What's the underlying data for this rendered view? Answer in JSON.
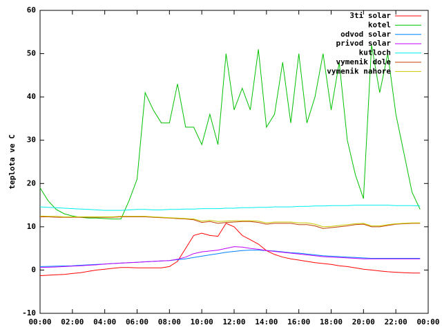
{
  "chart_data": {
    "type": "line",
    "ylabel": "teplota ve C",
    "x": [
      0,
      0.5,
      1,
      1.5,
      2,
      2.5,
      3,
      3.5,
      4,
      4.5,
      5,
      5.5,
      6,
      6.5,
      7,
      7.5,
      8,
      8.5,
      9,
      9.5,
      10,
      10.5,
      11,
      11.5,
      12,
      12.5,
      13,
      13.5,
      14,
      14.5,
      15,
      15.5,
      16,
      16.5,
      17,
      17.5,
      18,
      18.5,
      19,
      19.5,
      20,
      20.5,
      21,
      21.5,
      22,
      22.5,
      23,
      23.5
    ],
    "xlim": [
      0,
      24
    ],
    "xticks": [
      {
        "value": 0,
        "label": "00:00"
      },
      {
        "value": 2,
        "label": "02:00"
      },
      {
        "value": 4,
        "label": "04:00"
      },
      {
        "value": 6,
        "label": "06:00"
      },
      {
        "value": 8,
        "label": "08:00"
      },
      {
        "value": 10,
        "label": "10:00"
      },
      {
        "value": 12,
        "label": "12:00"
      },
      {
        "value": 14,
        "label": "14:00"
      },
      {
        "value": 16,
        "label": "16:00"
      },
      {
        "value": 18,
        "label": "18:00"
      },
      {
        "value": 20,
        "label": "20:00"
      },
      {
        "value": 22,
        "label": "22:00"
      },
      {
        "value": 24,
        "label": "00:00"
      }
    ],
    "ylim": [
      -10,
      60
    ],
    "yticks": [
      -10,
      0,
      10,
      20,
      30,
      40,
      50,
      60
    ],
    "legend": "top-right",
    "series": [
      {
        "name": "3ti solar",
        "color": "#ff0000",
        "values": [
          -1.3,
          -1.2,
          -1.1,
          -1,
          -0.8,
          -0.6,
          -0.3,
          0,
          0.2,
          0.4,
          0.6,
          0.6,
          0.5,
          0.5,
          0.5,
          0.5,
          0.8,
          2,
          5,
          8,
          8.5,
          8,
          7.8,
          10.8,
          10,
          8,
          7,
          6,
          4.5,
          3.6,
          3,
          2.6,
          2.3,
          2,
          1.7,
          1.5,
          1.3,
          1,
          0.8,
          0.5,
          0.2,
          0,
          -0.2,
          -0.4,
          -0.5,
          -0.6,
          -0.7,
          -0.7
        ]
      },
      {
        "name": "kotel",
        "color": "#00c000",
        "values": [
          19,
          16,
          14,
          13,
          12.5,
          12.2,
          12,
          12,
          11.9,
          11.8,
          11.8,
          16,
          21,
          41,
          37,
          34,
          34,
          43,
          33,
          33,
          29,
          36,
          29,
          50,
          37,
          42,
          37,
          51,
          33,
          36,
          48,
          34,
          50,
          34,
          40,
          50,
          37,
          48,
          30,
          22,
          16.5,
          52,
          41,
          50,
          36,
          27,
          18,
          14
        ]
      },
      {
        "name": "odvod solar",
        "color": "#0080ff",
        "values": [
          0.8,
          0.85,
          0.9,
          0.95,
          1,
          1.1,
          1.2,
          1.3,
          1.4,
          1.5,
          1.6,
          1.7,
          1.8,
          1.9,
          2,
          2.1,
          2.2,
          2.4,
          2.6,
          2.9,
          3.2,
          3.5,
          3.8,
          4.1,
          4.3,
          4.5,
          4.6,
          4.6,
          4.5,
          4.4,
          4.2,
          4,
          3.9,
          3.7,
          3.5,
          3.3,
          3.2,
          3.1,
          3,
          2.9,
          2.8,
          2.7,
          2.7,
          2.7,
          2.7,
          2.7,
          2.7,
          2.7
        ]
      },
      {
        "name": "privod solar",
        "color": "#c000ff",
        "values": [
          0.6,
          0.65,
          0.7,
          0.8,
          0.9,
          1,
          1.1,
          1.2,
          1.4,
          1.5,
          1.6,
          1.7,
          1.8,
          1.9,
          2,
          2.1,
          2.2,
          2.5,
          3,
          3.8,
          4.2,
          4.4,
          4.6,
          5,
          5.4,
          5.3,
          5,
          4.8,
          4.5,
          4.3,
          4.1,
          3.9,
          3.7,
          3.5,
          3.3,
          3.1,
          3,
          2.9,
          2.8,
          2.7,
          2.6,
          2.6,
          2.6,
          2.6,
          2.6,
          2.6,
          2.6,
          2.6
        ]
      },
      {
        "name": "kutloch",
        "color": "#00eeee",
        "values": [
          14.6,
          14.5,
          14.4,
          14.3,
          14.2,
          14.1,
          14,
          13.9,
          13.8,
          13.8,
          13.8,
          13.9,
          14,
          14,
          13.9,
          13.9,
          14,
          14,
          14.1,
          14.1,
          14.2,
          14.2,
          14.2,
          14.3,
          14.3,
          14.4,
          14.4,
          14.5,
          14.5,
          14.6,
          14.6,
          14.6,
          14.7,
          14.7,
          14.8,
          14.8,
          14.9,
          14.9,
          14.9,
          15,
          15,
          15,
          15,
          15,
          14.9,
          14.9,
          14.9,
          14.8
        ]
      },
      {
        "name": "vymenik dole",
        "color": "#c04000",
        "values": [
          12.3,
          12.3,
          12.2,
          12.2,
          12.2,
          12.2,
          12.2,
          12.2,
          12.2,
          12.2,
          12.3,
          12.3,
          12.3,
          12.3,
          12.2,
          12.1,
          12,
          11.9,
          11.8,
          11.6,
          11,
          11.2,
          10.8,
          11,
          11.1,
          11.2,
          11.2,
          11,
          10.6,
          10.8,
          10.8,
          10.8,
          10.5,
          10.5,
          10.2,
          9.6,
          9.8,
          10,
          10.2,
          10.5,
          10.6,
          10,
          10,
          10.3,
          10.6,
          10.7,
          10.8,
          10.8
        ]
      },
      {
        "name": "vymenik nahore",
        "color": "#c8c800",
        "values": [
          12.5,
          12.4,
          12.4,
          12.3,
          12.3,
          12.3,
          12.3,
          12.3,
          12.3,
          12.3,
          12.4,
          12.4,
          12.4,
          12.4,
          12.3,
          12.2,
          12.1,
          12,
          11.9,
          11.8,
          11.3,
          11.5,
          11.2,
          11.3,
          11.4,
          11.4,
          11.4,
          11.3,
          10.9,
          11.1,
          11.1,
          11.1,
          10.9,
          10.9,
          10.6,
          10,
          10.1,
          10.3,
          10.5,
          10.7,
          10.8,
          10.2,
          10.2,
          10.5,
          10.7,
          10.8,
          10.9,
          10.9
        ]
      }
    ]
  }
}
